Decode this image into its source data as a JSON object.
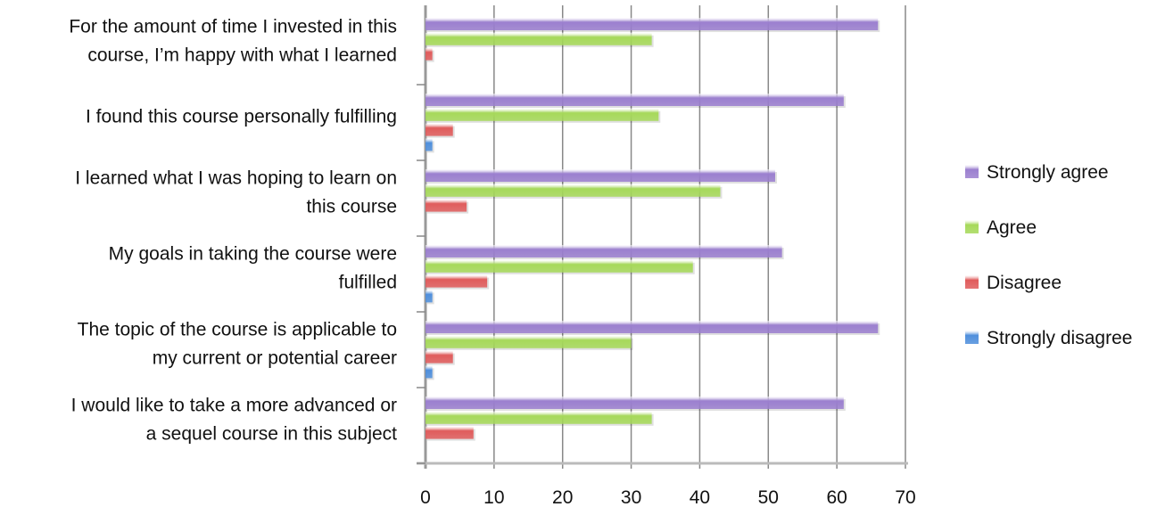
{
  "chart_data": {
    "type": "bar",
    "orientation": "horizontal",
    "title": "",
    "xlabel": "",
    "ylabel": "",
    "xlim": [
      0,
      70
    ],
    "xticks": [
      "0",
      "10",
      "20",
      "30",
      "40",
      "50",
      "60",
      "70"
    ],
    "grid": true,
    "legend_position": "right",
    "categories": [
      [
        "For the amount of time I invested in this",
        "course, I’m happy with what I learned"
      ],
      [
        "I found this course personally fulfilling"
      ],
      [
        "I learned what I was hoping to learn on",
        "this course"
      ],
      [
        "My goals in taking the course were",
        "fulfilled"
      ],
      [
        "The topic of the course is applicable to",
        "my current or potential career"
      ],
      [
        "I would like to take a more advanced or",
        "a sequel course in this subject"
      ]
    ],
    "series": [
      {
        "name": "Strongly agree",
        "color": "#9b7fcf",
        "values": [
          66,
          61,
          51,
          52,
          66,
          61
        ]
      },
      {
        "name": "Agree",
        "color": "#a6d95a",
        "values": [
          33,
          34,
          43,
          39,
          30,
          33
        ]
      },
      {
        "name": "Disagree",
        "color": "#e05c5c",
        "values": [
          1,
          4,
          6,
          9,
          4,
          7
        ]
      },
      {
        "name": "Strongly disagree",
        "color": "#4f8fdc",
        "values": [
          0,
          1,
          0,
          1,
          1,
          0
        ]
      }
    ]
  }
}
